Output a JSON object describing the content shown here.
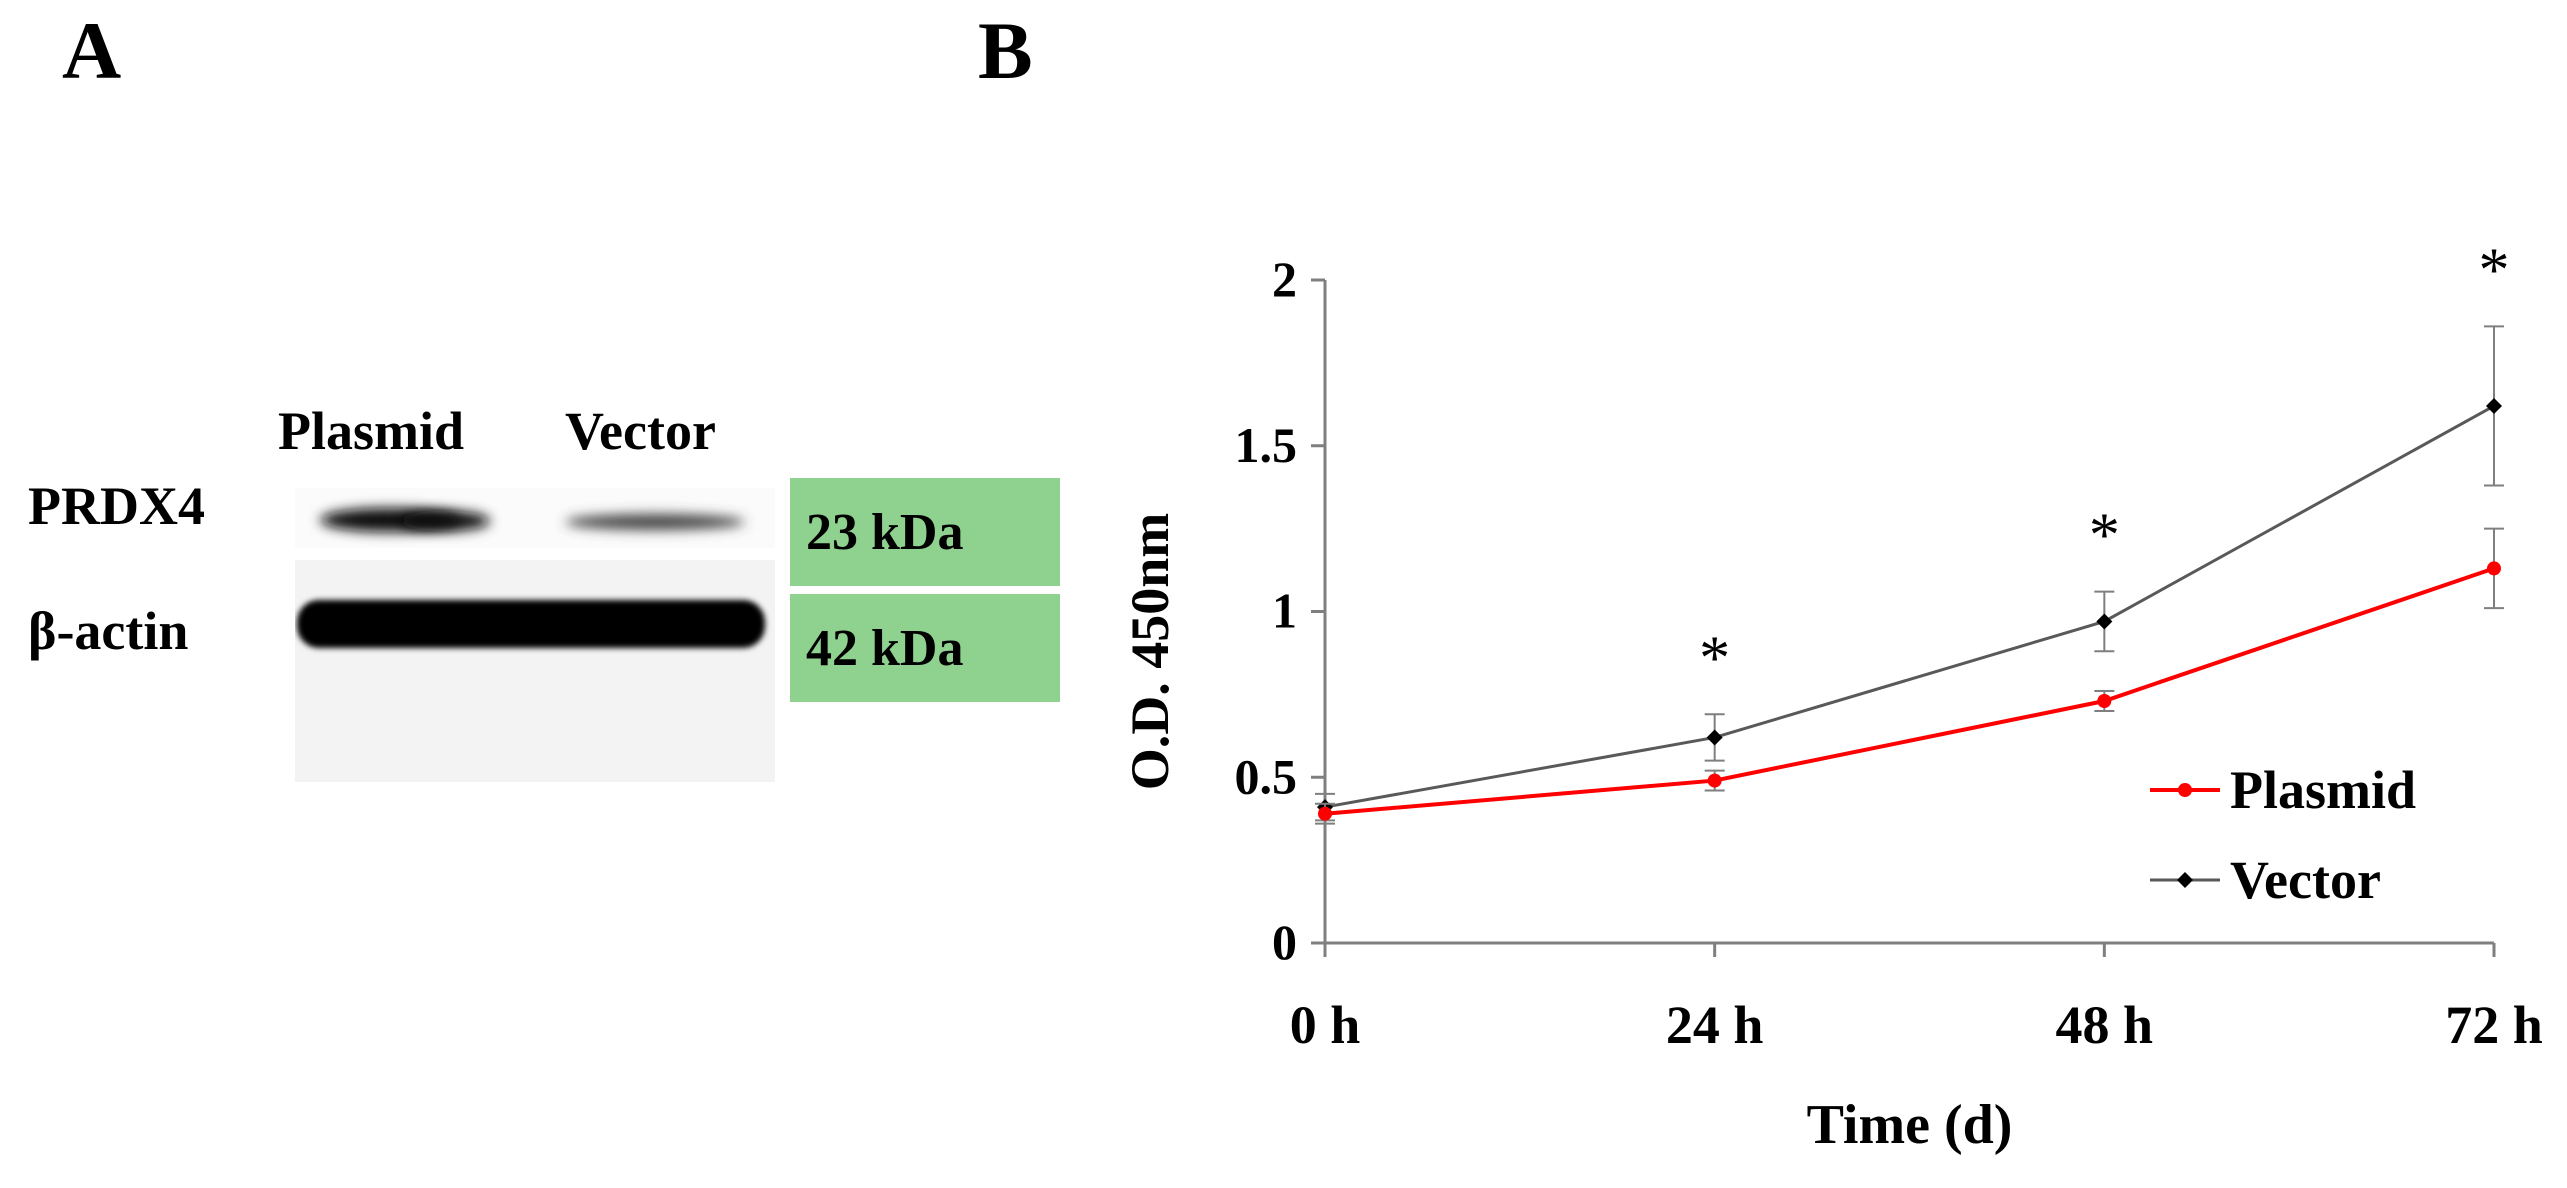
{
  "panel_a": {
    "letter": "A",
    "lane_labels": [
      "Plasmid",
      "Vector"
    ],
    "rows": [
      {
        "protein": "PRDX4",
        "size": "23 kDa"
      },
      {
        "protein": "β-actin",
        "size": "42 kDa"
      }
    ],
    "kda_box_color": "#8fd18f"
  },
  "panel_b": {
    "letter": "B"
  },
  "chart_data": {
    "type": "line",
    "title": "",
    "xlabel": "Time (d)",
    "ylabel": "O.D. 450nm",
    "categories": [
      "0 h",
      "24 h",
      "48 h",
      "72 h"
    ],
    "ylim": [
      0,
      2
    ],
    "yticks": [
      "0",
      "0.5",
      "1",
      "1.5",
      "2"
    ],
    "significance_marker": "*",
    "significant_at": [
      "24 h",
      "48 h",
      "72 h"
    ],
    "legend_position": "right",
    "series": [
      {
        "name": "Plasmid",
        "color": "#ff0000",
        "values": [
          0.39,
          0.49,
          0.73,
          1.13
        ],
        "errors": [
          0.03,
          0.03,
          0.03,
          0.12
        ]
      },
      {
        "name": "Vector",
        "color": "#595959",
        "values": [
          0.41,
          0.62,
          0.97,
          1.62
        ],
        "errors": [
          0.04,
          0.07,
          0.09,
          0.24
        ]
      }
    ]
  }
}
